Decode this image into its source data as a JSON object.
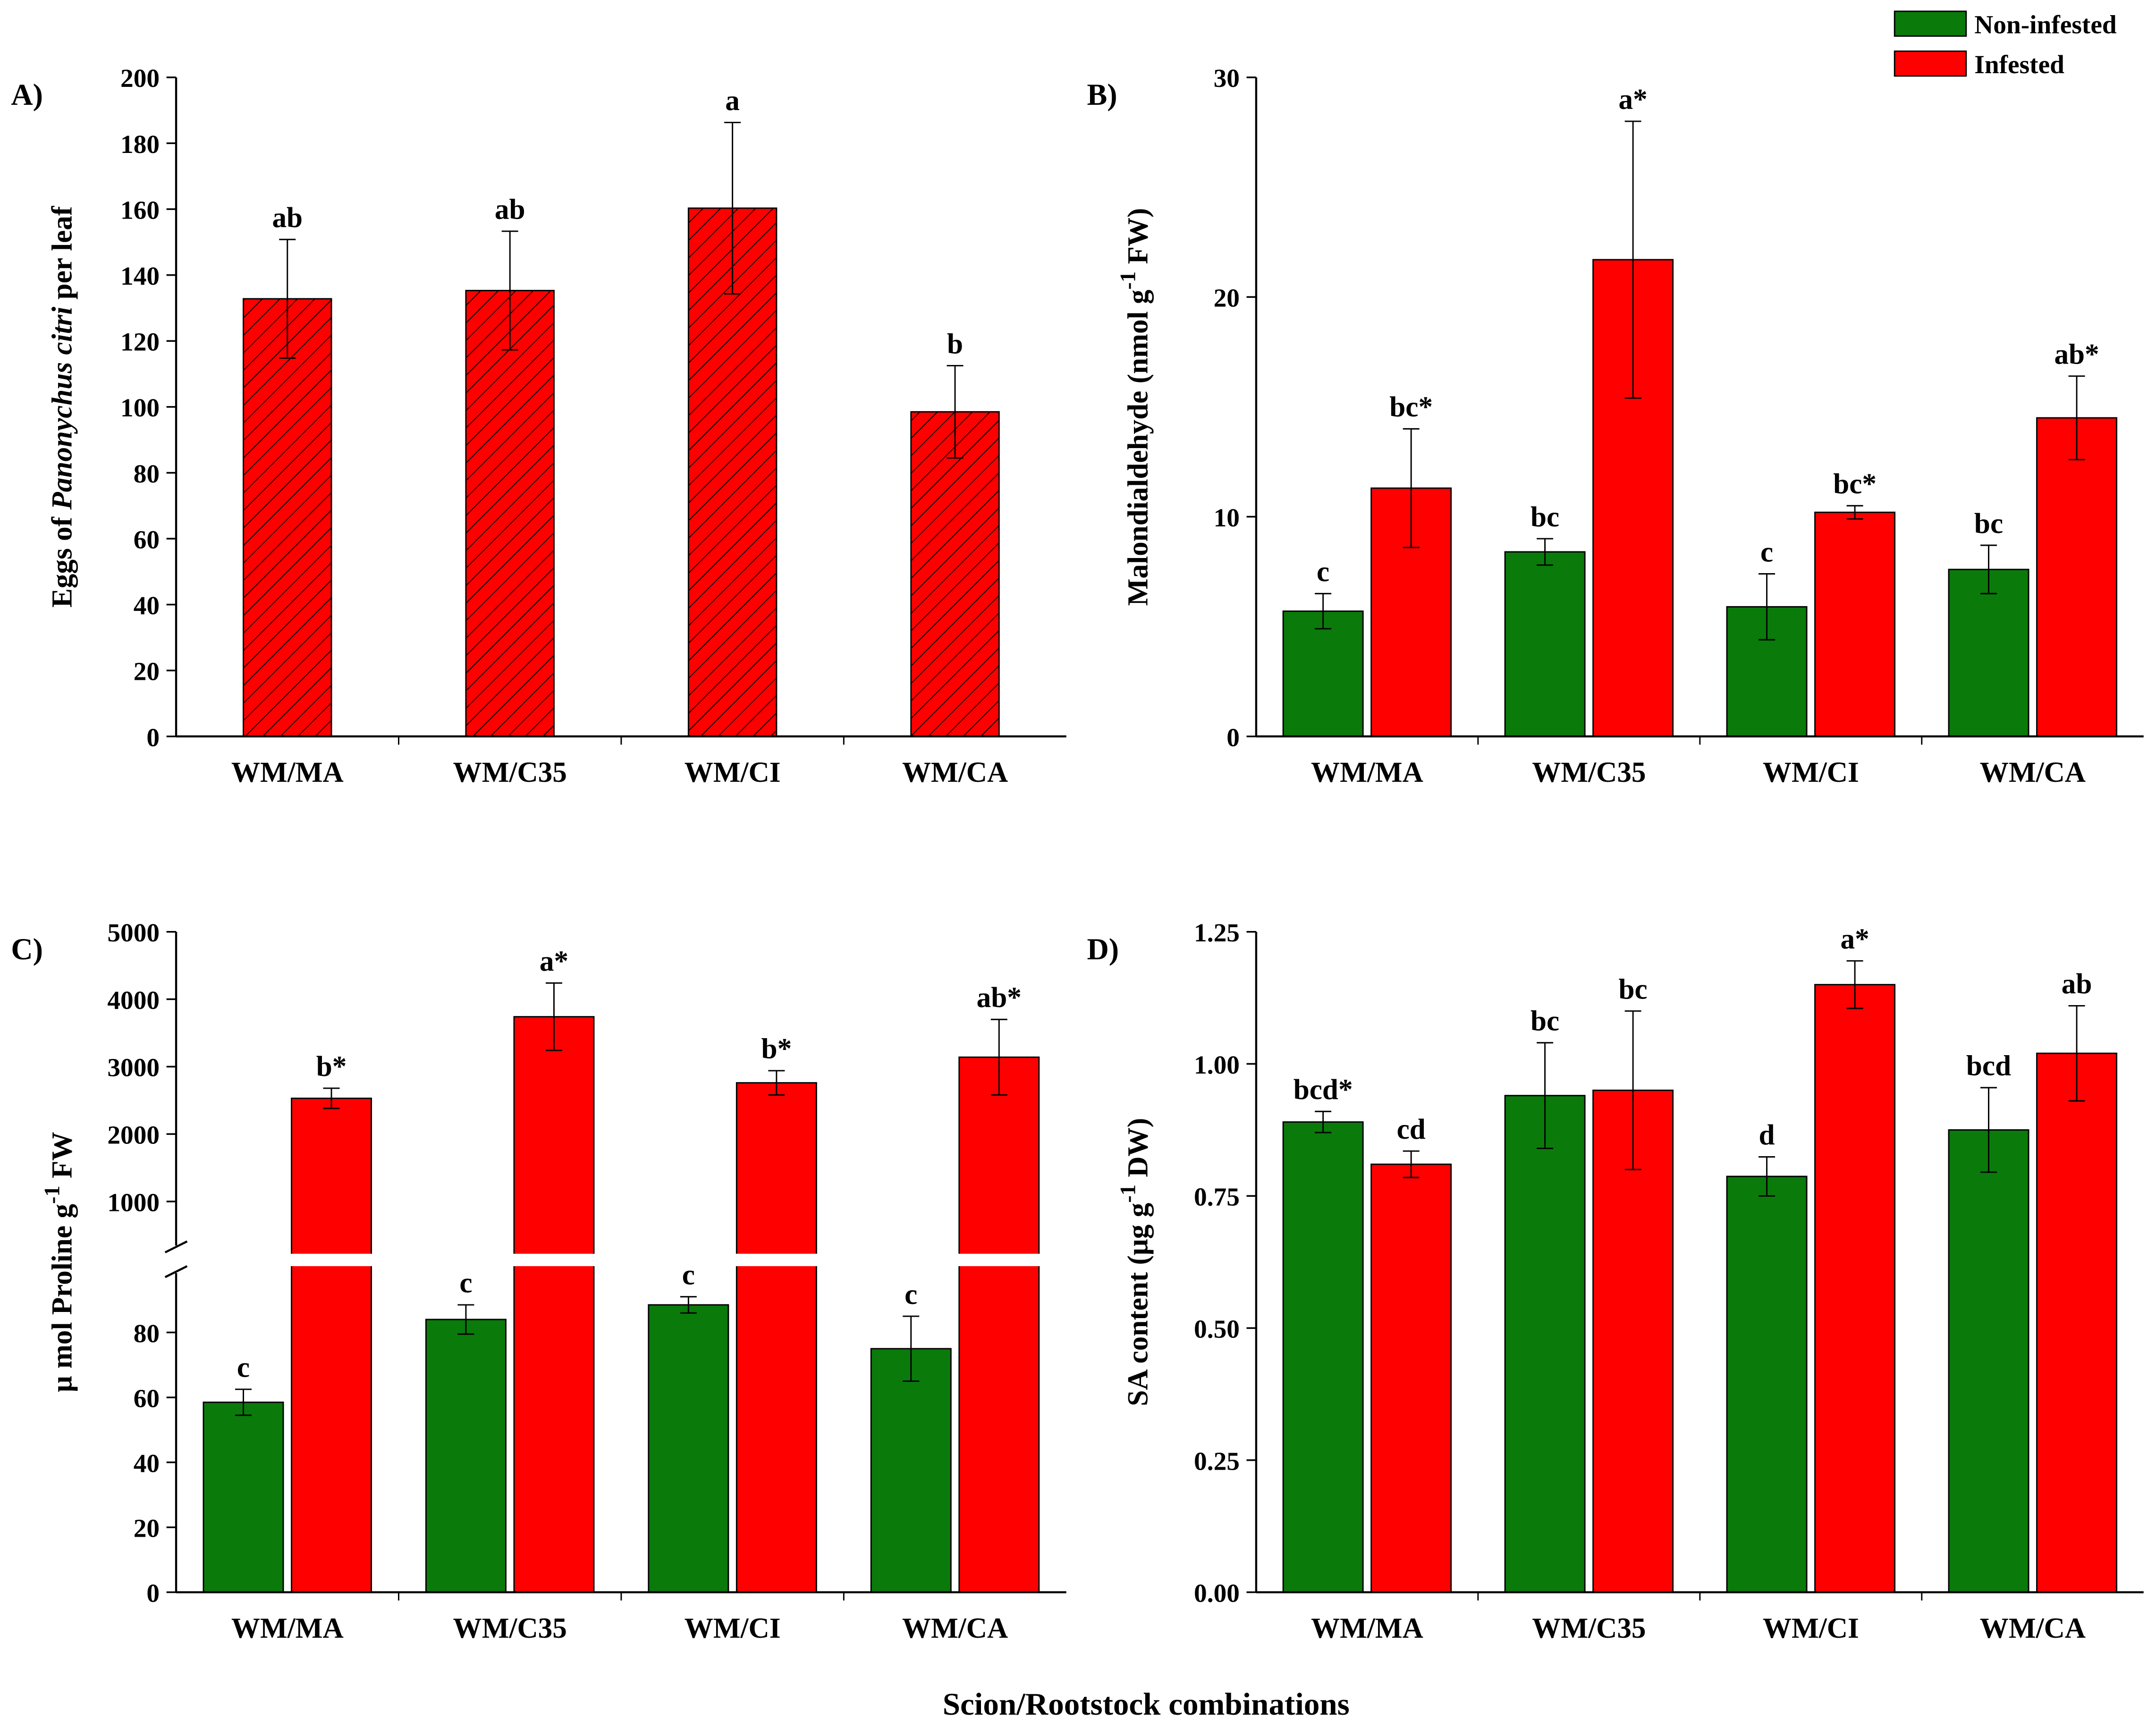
{
  "colors": {
    "non_infested": "#0a7a0a",
    "infested": "#ff0000"
  },
  "legend": {
    "placement": "top-right",
    "entries": [
      "Non-infested",
      "Infested"
    ]
  },
  "common_xlabel": "Scion/Rootstock combinations",
  "chart_data": [
    {
      "panel": "A)",
      "type": "bar",
      "categories": [
        "WM/MA",
        "WM/C35",
        "WM/CI",
        "WM/CA"
      ],
      "ylabel_parts": [
        "Eggs of ",
        "Panonychus citri",
        " per leaf"
      ],
      "ylim": [
        0,
        200
      ],
      "yticks": [
        0,
        20,
        40,
        60,
        80,
        100,
        120,
        140,
        160,
        180,
        200
      ],
      "series": [
        {
          "name": "Infested",
          "values": [
            132.8,
            135.3,
            160.3,
            98.5
          ],
          "errors": [
            18,
            18,
            26,
            14
          ],
          "letters": [
            "ab",
            "ab",
            "a",
            "b"
          ],
          "hatched": true
        }
      ]
    },
    {
      "panel": "B)",
      "type": "bar",
      "categories": [
        "WM/MA",
        "WM/C35",
        "WM/CI",
        "WM/CA"
      ],
      "ylabel_parts": [
        "Malondialdehyde (nmol g",
        "-1",
        " FW)"
      ],
      "ylim": [
        0,
        30
      ],
      "yticks": [
        0,
        10,
        20,
        30
      ],
      "series": [
        {
          "name": "Non-infested",
          "values": [
            5.7,
            8.4,
            5.9,
            7.6
          ],
          "errors": [
            0.8,
            0.6,
            1.5,
            1.1
          ],
          "letters": [
            "c",
            "bc",
            "c",
            "bc"
          ]
        },
        {
          "name": "Infested",
          "values": [
            11.3,
            21.7,
            10.2,
            14.5
          ],
          "errors": [
            2.7,
            6.3,
            0.3,
            1.9
          ],
          "letters": [
            "bc*",
            "a*",
            "bc*",
            "ab*"
          ]
        }
      ]
    },
    {
      "panel": "C)",
      "type": "bar",
      "categories": [
        "WM/MA",
        "WM/C35",
        "WM/CI",
        "WM/CA"
      ],
      "ylabel_parts": [
        "μ mol Proline g",
        "-1",
        " FW"
      ],
      "y_break": true,
      "ylim_lower": [
        0,
        100
      ],
      "ylim_upper": [
        350,
        5000
      ],
      "yticks": [
        0,
        20,
        40,
        60,
        80,
        1000,
        2000,
        3000,
        4000,
        5000
      ],
      "series": [
        {
          "name": "Non-infested",
          "values": [
            58.5,
            84,
            88.5,
            75
          ],
          "errors": [
            4,
            4.5,
            2.5,
            10
          ],
          "letters": [
            "c",
            "c",
            "c",
            "c"
          ]
        },
        {
          "name": "Infested",
          "values": [
            2530,
            3740,
            2760,
            3140
          ],
          "errors": [
            150,
            500,
            180,
            560
          ],
          "letters": [
            "b*",
            "a*",
            "b*",
            "ab*"
          ]
        }
      ]
    },
    {
      "panel": "D)",
      "type": "bar",
      "categories": [
        "WM/MA",
        "WM/C35",
        "WM/CI",
        "WM/CA"
      ],
      "ylabel_parts": [
        "SA content (μg g",
        "-1",
        " DW)"
      ],
      "ylim": [
        0,
        1.25
      ],
      "yticks": [
        "0.00",
        "0.25",
        "0.50",
        "0.75",
        "1.00",
        "1.25"
      ],
      "series": [
        {
          "name": "Non-infested",
          "values": [
            0.89,
            0.94,
            0.787,
            0.875
          ],
          "errors": [
            0.02,
            0.1,
            0.037,
            0.08
          ],
          "letters": [
            "bcd*",
            "bc",
            "d",
            "bcd"
          ]
        },
        {
          "name": "Infested",
          "values": [
            0.81,
            0.95,
            1.15,
            1.02
          ],
          "errors": [
            0.025,
            0.15,
            0.045,
            0.09
          ],
          "letters": [
            "cd",
            "bc",
            "a*",
            "ab"
          ]
        }
      ]
    }
  ]
}
